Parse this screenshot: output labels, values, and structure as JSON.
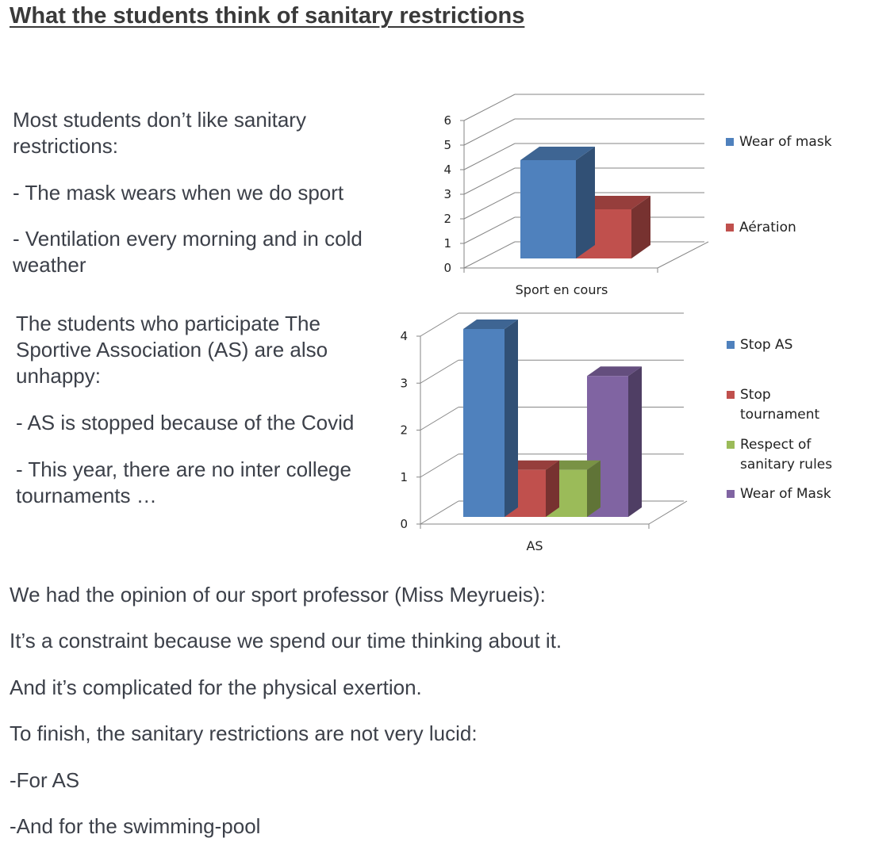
{
  "title": "What the students think of sanitary restrictions",
  "block1": {
    "intro_line1": "Most students don’t like sanitary",
    "intro_line2": "restrictions:",
    "item1": "- The mask wears when we do sport",
    "item2_line1": "- Ventilation every morning and in cold",
    "item2_line2": "weather"
  },
  "block2": {
    "intro_line1": "The students who participate The",
    "intro_line2": "Sportive Association (AS) are also",
    "intro_line3": "unhappy:",
    "item1": "- AS is stopped because of the Covid",
    "item2_line1": "- This year, there are no inter college",
    "item2_line2": "tournaments …"
  },
  "block3": {
    "line1": "We had the opinion of our sport professor (Miss Meyrueis):",
    "line2": "It’s a constraint because we spend our time thinking about it.",
    "line3": "And it’s complicated for the physical exertion.",
    "line4": "To finish, the sanitary restrictions are not very lucid:",
    "line5": "-For AS",
    "line6": "-And for the swimming-pool"
  },
  "chart_data": [
    {
      "type": "bar",
      "categories": [
        "Sport en cours"
      ],
      "series": [
        {
          "name": "Wear of mask",
          "values": [
            4
          ],
          "color": "#4f81bd"
        },
        {
          "name": "Aération",
          "values": [
            2
          ],
          "color": "#c0504d"
        }
      ],
      "yticks": [
        "0",
        "1",
        "2",
        "3",
        "4",
        "5",
        "6"
      ],
      "ylim": [
        0,
        6
      ],
      "grid": true,
      "legend": "right"
    },
    {
      "type": "bar",
      "categories": [
        "AS"
      ],
      "series": [
        {
          "name": "Stop AS",
          "values": [
            4
          ],
          "color": "#4f81bd"
        },
        {
          "name": "Stop tournament",
          "values": [
            1
          ],
          "color": "#c0504d"
        },
        {
          "name": "Respect of sanitary rules",
          "values": [
            1
          ],
          "color": "#9bbb59"
        },
        {
          "name": "Wear of Mask",
          "values": [
            3
          ],
          "color": "#8064a2"
        }
      ],
      "yticks": [
        "0",
        "1",
        "2",
        "3",
        "4"
      ],
      "ylim": [
        0,
        4
      ],
      "grid": true,
      "legend": "right"
    }
  ]
}
